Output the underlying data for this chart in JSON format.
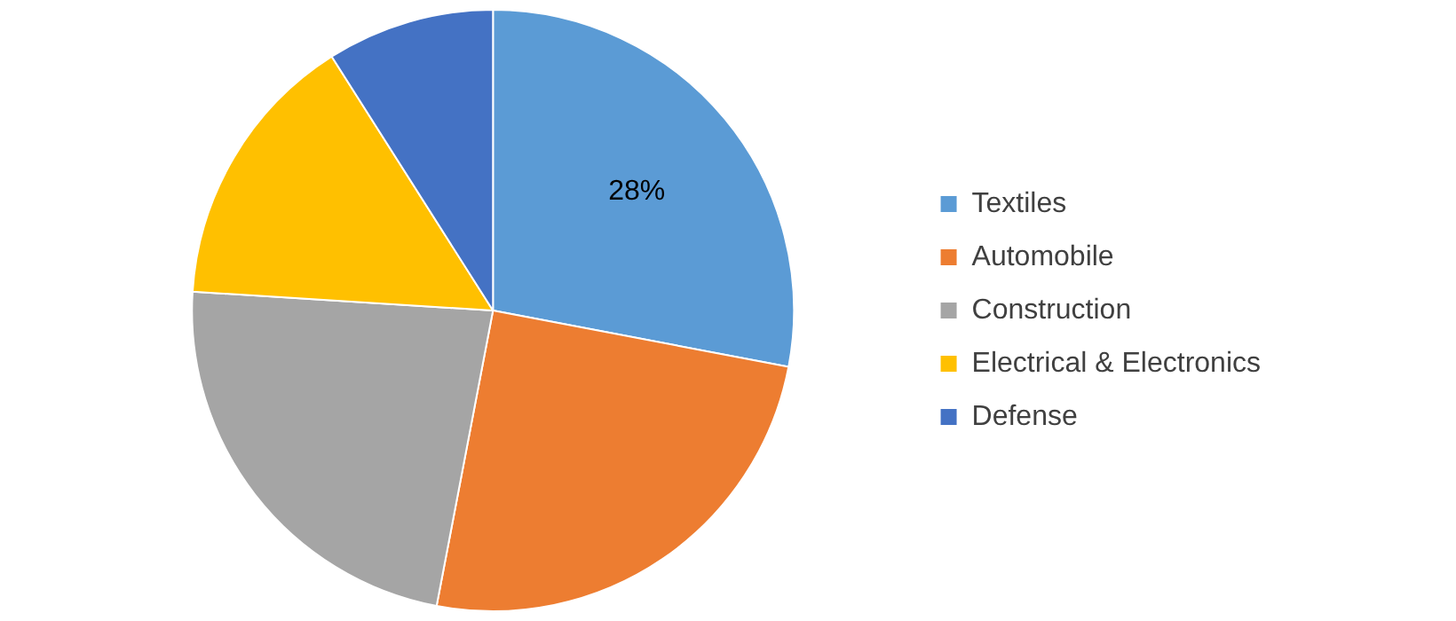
{
  "chart_data": {
    "type": "pie",
    "categories": [
      "Textiles",
      "Automobile",
      "Construction",
      "Electrical & Electronics",
      "Defense"
    ],
    "values": [
      28,
      25,
      23,
      15,
      9
    ],
    "value_labels": [
      "28%",
      null,
      null,
      null,
      null
    ],
    "colors": [
      "#5b9bd5",
      "#ed7d31",
      "#a5a5a5",
      "#ffc000",
      "#4472c4"
    ],
    "legend": "right"
  }
}
